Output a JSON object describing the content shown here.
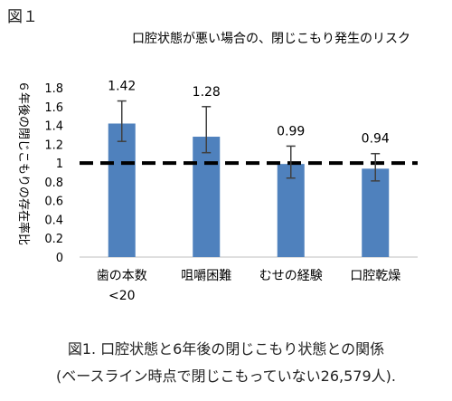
{
  "figure_label": "図１",
  "caption_line1": "図1.  口腔状態と6年後の閉じこもり状態との関係",
  "caption_line2": "(ベースライン時点で閉じこもっていない26,579人).",
  "chart_data": {
    "type": "bar",
    "title": "口腔状態が悪い場合の、閉じこもり発生のリスク",
    "ylabel": "６年後の閉じこもりの存在率比",
    "xlabel": "",
    "categories": [
      [
        "歯の本数",
        "<20"
      ],
      [
        "咀嚼困難"
      ],
      [
        "むせの経験"
      ],
      [
        "口腔乾燥"
      ]
    ],
    "values": [
      1.42,
      1.28,
      0.99,
      0.94
    ],
    "value_labels": [
      "1.42",
      "1.28",
      "0.99",
      "0.94"
    ],
    "error_low": [
      1.23,
      1.11,
      0.84,
      0.81
    ],
    "error_high": [
      1.66,
      1.6,
      1.18,
      1.1
    ],
    "ylim": [
      0,
      1.8
    ],
    "yticks": [
      0,
      0.2,
      0.4,
      0.6,
      0.8,
      1,
      1.2,
      1.4,
      1.6,
      1.8
    ],
    "ytick_labels": [
      "0",
      "0.2",
      "0.4",
      "0.6",
      "0.8",
      "1",
      "1.2",
      "1.4",
      "1.6",
      "1.8"
    ],
    "reference_line": 1,
    "grid": false,
    "bar_color": "#4f81bd",
    "error_color": "#404040"
  }
}
